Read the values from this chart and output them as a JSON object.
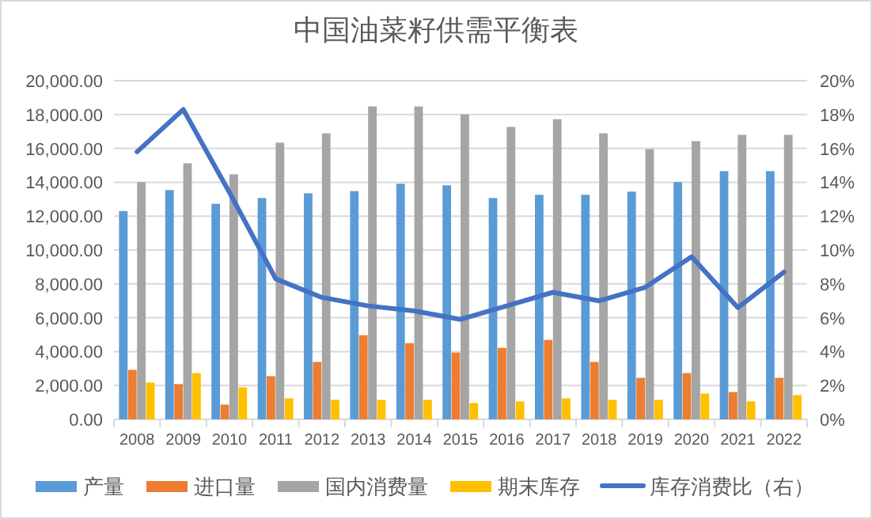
{
  "chart_data": {
    "type": "bar",
    "title": "中国油菜籽供需平衡表",
    "categories": [
      "2008",
      "2009",
      "2010",
      "2011",
      "2012",
      "2013",
      "2014",
      "2015",
      "2016",
      "2017",
      "2018",
      "2019",
      "2020",
      "2021",
      "2022"
    ],
    "series": [
      {
        "name": "产量",
        "color": "#5b9bd5",
        "values": [
          12300,
          13540,
          12730,
          13070,
          13350,
          13480,
          13910,
          13820,
          13070,
          13260,
          13260,
          13450,
          14010,
          14660,
          14660
        ]
      },
      {
        "name": "进口量",
        "color": "#ed7d31",
        "values": [
          2920,
          2080,
          870,
          2550,
          3390,
          4970,
          4500,
          3940,
          4220,
          4690,
          3390,
          2450,
          2730,
          1610,
          2450
        ]
      },
      {
        "name": "国内消费量",
        "color": "#a5a5a5",
        "values": [
          14010,
          15120,
          14470,
          16340,
          16890,
          18480,
          18480,
          18010,
          17270,
          17730,
          16890,
          15960,
          16430,
          16800,
          16800
        ]
      },
      {
        "name": "期末库存",
        "color": "#ffc000",
        "values": [
          2170,
          2730,
          1890,
          1240,
          1150,
          1150,
          1150,
          960,
          1060,
          1240,
          1150,
          1150,
          1520,
          1060,
          1430
        ]
      },
      {
        "name": "库存消费比（右）",
        "type": "line",
        "axis": "y2",
        "color": "#4472c4",
        "values": [
          15.8,
          18.3,
          13.4,
          8.3,
          7.2,
          6.7,
          6.4,
          5.9,
          6.7,
          7.5,
          7.0,
          7.8,
          9.6,
          6.6,
          8.7
        ]
      }
    ],
    "ylim": [
      0,
      20000
    ],
    "yticks": [
      {
        "value": 0,
        "label": "0.00"
      },
      {
        "value": 2000,
        "label": "2,000.00"
      },
      {
        "value": 4000,
        "label": "4,000.00"
      },
      {
        "value": 6000,
        "label": "6,000.00"
      },
      {
        "value": 8000,
        "label": "8,000.00"
      },
      {
        "value": 10000,
        "label": "10,000.00"
      },
      {
        "value": 12000,
        "label": "12,000.00"
      },
      {
        "value": 14000,
        "label": "14,000.00"
      },
      {
        "value": 16000,
        "label": "16,000.00"
      },
      {
        "value": 18000,
        "label": "18,000.00"
      },
      {
        "value": 20000,
        "label": "20,000.00"
      }
    ],
    "y2lim": [
      0,
      20
    ],
    "y2ticks": [
      {
        "value": 0,
        "label": "0%"
      },
      {
        "value": 2,
        "label": "2%"
      },
      {
        "value": 4,
        "label": "4%"
      },
      {
        "value": 6,
        "label": "6%"
      },
      {
        "value": 8,
        "label": "8%"
      },
      {
        "value": 10,
        "label": "10%"
      },
      {
        "value": 12,
        "label": "12%"
      },
      {
        "value": 14,
        "label": "14%"
      },
      {
        "value": 16,
        "label": "16%"
      },
      {
        "value": 18,
        "label": "18%"
      },
      {
        "value": 20,
        "label": "20%"
      }
    ],
    "grid": "y",
    "legend": "bottom",
    "marker": "none",
    "line_style": "solid"
  }
}
